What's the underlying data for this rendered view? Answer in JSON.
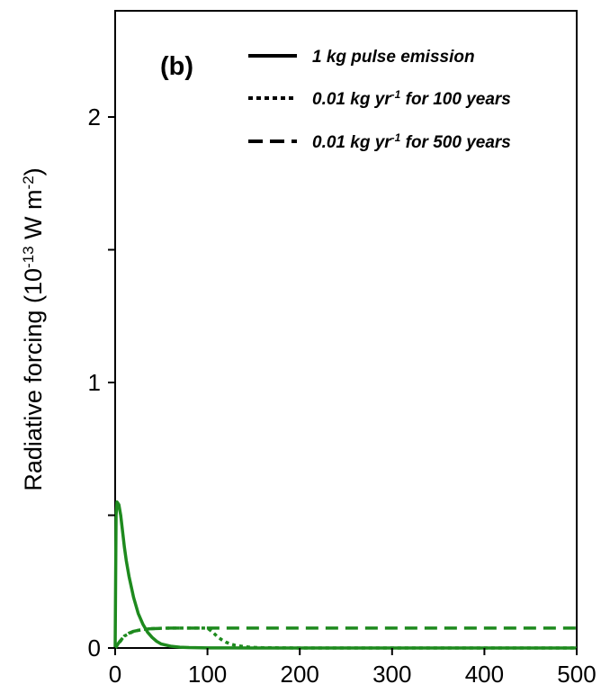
{
  "chart_data": {
    "type": "line",
    "panel_label": "(b)",
    "ylabel": {
      "main": "Radiative forcing (10",
      "exp1": "-13",
      "mid": " W m",
      "exp2": "-2",
      "close": ")"
    },
    "xlim": [
      0,
      500
    ],
    "ylim": [
      0,
      2.4
    ],
    "x_ticks": [
      0,
      100,
      200,
      300,
      400,
      500
    ],
    "x_tick_labels": [
      "0",
      "100",
      "200",
      "300",
      "400",
      "500"
    ],
    "y_ticks": [
      0,
      0.5,
      1,
      1.5,
      2
    ],
    "y_tick_labels": [
      "0",
      "",
      "1",
      "",
      "2"
    ],
    "grid": false,
    "legend_position": "top-right",
    "series_color": "#1e8a1e",
    "legend": [
      {
        "style": "solid",
        "text_pre": "1 kg pulse emission",
        "sup": "",
        "text_post": ""
      },
      {
        "style": "dotted",
        "text_pre": "0.01 kg yr",
        "sup": "-1",
        "text_post": " for 100 years"
      },
      {
        "style": "dashed",
        "text_pre": "0.01 kg yr",
        "sup": "-1",
        "text_post": " for 500 years"
      }
    ],
    "series": [
      {
        "style": "solid",
        "x": [
          0,
          1,
          2,
          4,
          6,
          8,
          10,
          12,
          15,
          20,
          25,
          30,
          35,
          40,
          45,
          50,
          60,
          70,
          80,
          100,
          150,
          200,
          300,
          400,
          500
        ],
        "y": [
          0,
          0.5,
          0.55,
          0.54,
          0.5,
          0.44,
          0.38,
          0.33,
          0.27,
          0.19,
          0.13,
          0.09,
          0.06,
          0.04,
          0.025,
          0.015,
          0.007,
          0.003,
          0.0015,
          0.0004,
          0,
          0,
          0,
          0,
          0
        ]
      },
      {
        "style": "dotted",
        "x": [
          0,
          10,
          20,
          30,
          40,
          50,
          60,
          80,
          100,
          105,
          110,
          115,
          120,
          125,
          130,
          140,
          150,
          160,
          200,
          300,
          400,
          500
        ],
        "y": [
          0,
          0.045,
          0.063,
          0.07,
          0.073,
          0.074,
          0.075,
          0.075,
          0.075,
          0.062,
          0.045,
          0.032,
          0.022,
          0.015,
          0.01,
          0.005,
          0.002,
          0.001,
          0,
          0,
          0,
          0
        ]
      },
      {
        "style": "dashed",
        "x": [
          0,
          5,
          10,
          15,
          20,
          30,
          40,
          50,
          60,
          80,
          100,
          200,
          300,
          400,
          500
        ],
        "y": [
          0,
          0.025,
          0.045,
          0.056,
          0.063,
          0.07,
          0.073,
          0.074,
          0.075,
          0.075,
          0.075,
          0.075,
          0.075,
          0.075,
          0.075
        ]
      }
    ]
  }
}
